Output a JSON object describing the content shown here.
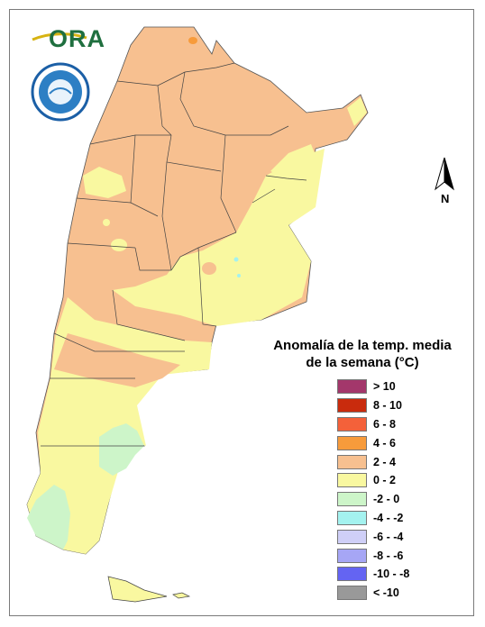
{
  "logo": {
    "text": "ORA"
  },
  "seal": {
    "text": "SERVICIO METEOROLOGICO NACIONAL · ARGENTINA"
  },
  "north_arrow": {
    "label": "N"
  },
  "legend": {
    "title_line1": "Anomalía de la temp. media",
    "title_line2": "de la semana (°C)",
    "items": [
      {
        "label": "> 10",
        "color": "#a3376b"
      },
      {
        "label": "8 - 10",
        "color": "#c92b0d"
      },
      {
        "label": "6 - 8",
        "color": "#f4613a"
      },
      {
        "label": "4 - 6",
        "color": "#f79b3b"
      },
      {
        "label": "2 - 4",
        "color": "#f7c090"
      },
      {
        "label": "0 - 2",
        "color": "#f9f8a0"
      },
      {
        "label": "-2 - 0",
        "color": "#cdf5c9"
      },
      {
        "label": "-4 - -2",
        "color": "#a4f2ef"
      },
      {
        "label": "-6 - -4",
        "color": "#cfcff7"
      },
      {
        "label": "-8 - -6",
        "color": "#a6a6f5"
      },
      {
        "label": "-10 - -8",
        "color": "#6464f2"
      },
      {
        "label": "< -10",
        "color": "#999999"
      }
    ]
  }
}
